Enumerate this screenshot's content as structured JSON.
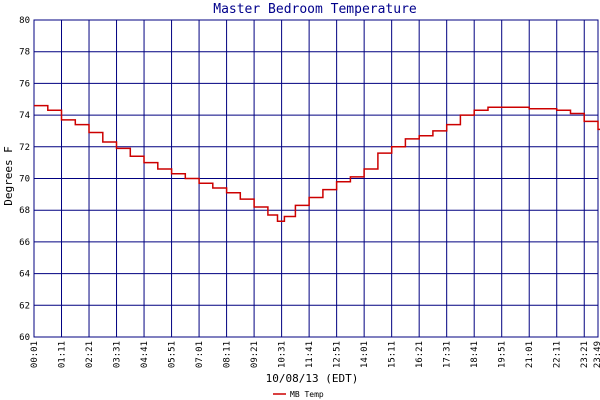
{
  "chart_data": {
    "type": "line",
    "title": "Master Bedroom Temperature",
    "xlabel": "10/08/13 (EDT)",
    "ylabel": "Degrees F",
    "ylim": [
      60,
      80
    ],
    "yticks": [
      60,
      62,
      64,
      66,
      68,
      70,
      72,
      74,
      76,
      78,
      80
    ],
    "xticks": [
      "00:01",
      "01:11",
      "02:21",
      "03:31",
      "04:41",
      "05:51",
      "07:01",
      "08:11",
      "09:21",
      "10:31",
      "11:41",
      "12:51",
      "14:01",
      "15:11",
      "16:21",
      "17:31",
      "18:41",
      "19:51",
      "21:01",
      "22:11",
      "23:21",
      "23:49"
    ],
    "grid": true,
    "legend_position": "bottom-left",
    "series": [
      {
        "name": "MB Temp",
        "color": "#cc0000",
        "points": [
          [
            0,
            74.6
          ],
          [
            0.5,
            74.3
          ],
          [
            1,
            73.7
          ],
          [
            1.5,
            73.4
          ],
          [
            2,
            72.9
          ],
          [
            2.5,
            72.3
          ],
          [
            3,
            71.9
          ],
          [
            3.5,
            71.4
          ],
          [
            4,
            71.0
          ],
          [
            4.5,
            70.6
          ],
          [
            5,
            70.3
          ],
          [
            5.5,
            70.0
          ],
          [
            6,
            69.7
          ],
          [
            6.5,
            69.4
          ],
          [
            7,
            69.1
          ],
          [
            7.5,
            68.7
          ],
          [
            8,
            68.2
          ],
          [
            8.5,
            67.7
          ],
          [
            8.85,
            67.3
          ],
          [
            9.1,
            67.6
          ],
          [
            9.5,
            68.3
          ],
          [
            10,
            68.8
          ],
          [
            10.5,
            69.3
          ],
          [
            11,
            69.8
          ],
          [
            11.5,
            70.1
          ],
          [
            12,
            70.6
          ],
          [
            12.5,
            71.6
          ],
          [
            13,
            72.0
          ],
          [
            13.5,
            72.5
          ],
          [
            14,
            72.7
          ],
          [
            14.5,
            73.0
          ],
          [
            15,
            73.4
          ],
          [
            15.5,
            74.0
          ],
          [
            16,
            74.3
          ],
          [
            16.5,
            74.5
          ],
          [
            17,
            74.5
          ],
          [
            17.5,
            74.5
          ],
          [
            18,
            74.4
          ],
          [
            18.5,
            74.4
          ],
          [
            19,
            74.3
          ],
          [
            19.5,
            74.1
          ],
          [
            20,
            73.6
          ],
          [
            20.5,
            73.1
          ],
          [
            20.8,
            73.0
          ],
          [
            21,
            73.2
          ],
          [
            21.3,
            73.5
          ],
          [
            21.7,
            73.5
          ],
          [
            22,
            73.4
          ],
          [
            22.3,
            72.9
          ],
          [
            22.6,
            72.4
          ],
          [
            22.75,
            72.3
          ]
        ]
      }
    ]
  }
}
